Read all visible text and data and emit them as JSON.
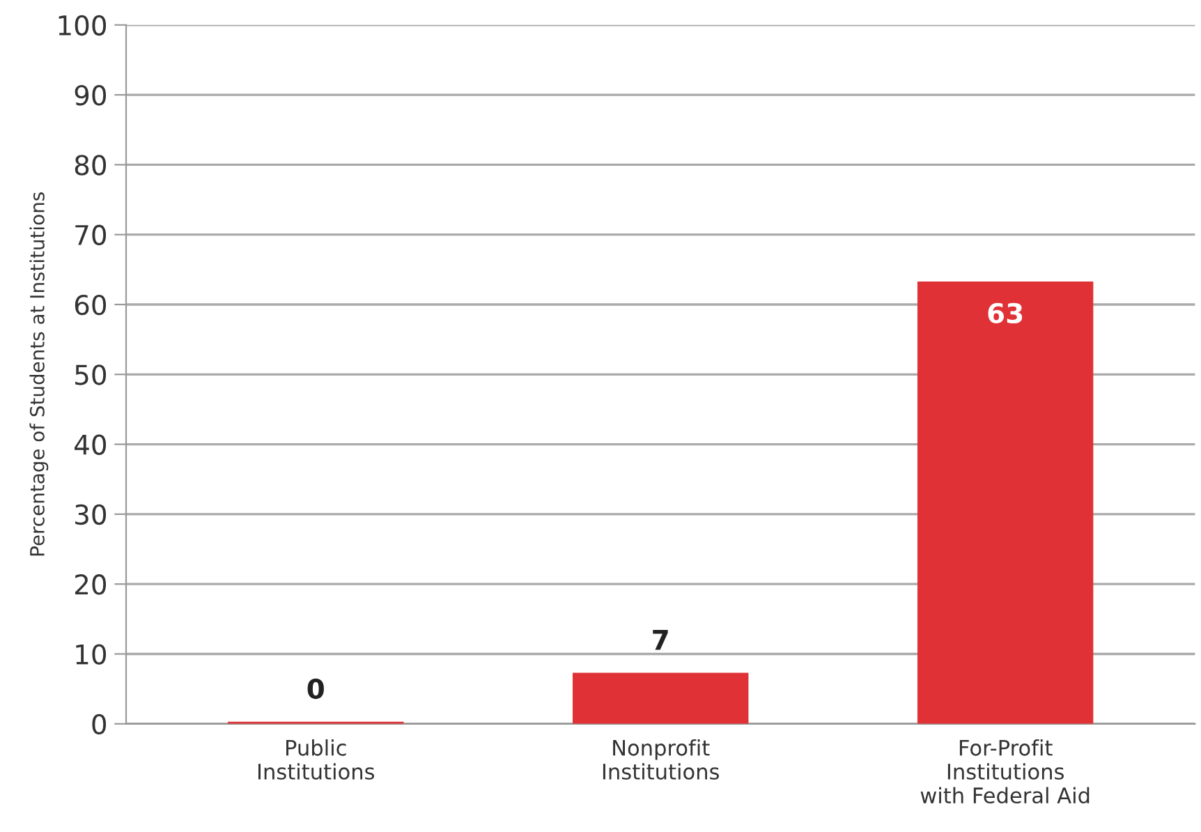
{
  "chart_data": {
    "type": "bar",
    "ylabel": "Percentage of Students at Institutions",
    "categories": [
      "Public\nInstitutions",
      "Nonprofit\nInstitutions",
      "For-Profit\nInstitutions\nwith Federal Aid"
    ],
    "values": [
      0.3,
      7.3,
      63.3
    ],
    "value_labels": [
      "0",
      "7",
      "63"
    ],
    "color": "#e03236",
    "ylim": [
      0,
      100
    ],
    "yticks": [
      0,
      10,
      20,
      30,
      40,
      50,
      60,
      70,
      80,
      90,
      100
    ],
    "grid": "y"
  }
}
